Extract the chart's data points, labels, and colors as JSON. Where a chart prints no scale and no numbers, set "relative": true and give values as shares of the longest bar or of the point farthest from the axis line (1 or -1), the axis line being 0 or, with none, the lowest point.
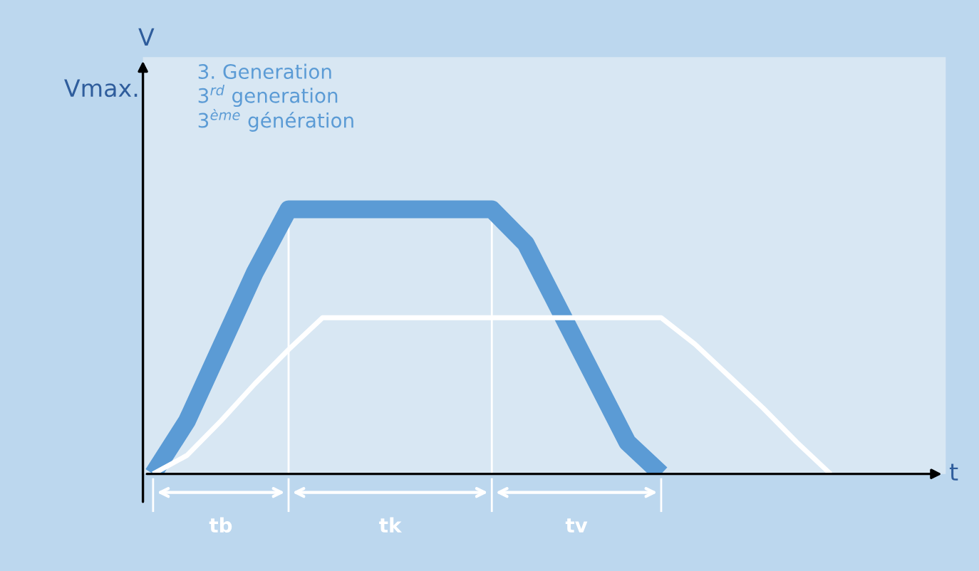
{
  "chart_data": {
    "type": "line",
    "relative": true,
    "xlabel": "t",
    "categories": [
      null,
      null,
      null,
      null,
      null,
      null,
      null,
      null,
      null,
      null,
      null,
      null,
      null,
      null,
      null,
      null,
      null,
      null,
      null,
      null,
      null,
      null,
      null,
      null
    ],
    "series": [
      {
        "name": "3. Generation\n3$^{rd}$ generation\n3$^{ème}$ génération",
        "color": "#5b9bd5",
        "values": [
          0,
          0.2,
          0.48,
          0.76,
          1,
          1,
          1,
          1,
          1,
          1,
          1,
          0.87,
          0.62,
          0.37,
          0.12,
          0,
          null,
          null,
          null,
          null,
          null,
          null,
          null,
          null
        ]
      },
      {
        "color": "#ffffff",
        "values": [
          0,
          0.07,
          0.2,
          0.34,
          0.47,
          0.59,
          0.59,
          0.59,
          0.59,
          0.59,
          0.59,
          0.59,
          0.59,
          0.59,
          0.59,
          0.59,
          0.49,
          0.37,
          0.25,
          0.12,
          0,
          null,
          null,
          null
        ]
      }
    ],
    "annotations": [
      "Vmax.",
      "tb",
      "tk",
      "tv",
      "V"
    ]
  }
}
